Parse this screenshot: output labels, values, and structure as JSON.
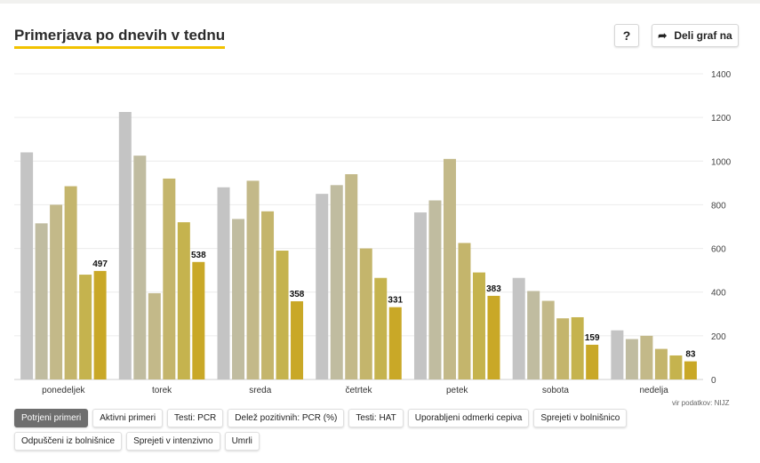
{
  "header": {
    "title": "Primerjava po dnevih v tednu",
    "help_label": "?",
    "share_label": "Deli graf na"
  },
  "source_label": "vir podatkov: NIJZ",
  "tabs": [
    {
      "label": "Potrjeni primeri",
      "active": true
    },
    {
      "label": "Aktivni primeri",
      "active": false
    },
    {
      "label": "Testi: PCR",
      "active": false
    },
    {
      "label": "Delež pozitivnih: PCR (%)",
      "active": false
    },
    {
      "label": "Testi: HAT",
      "active": false
    },
    {
      "label": "Uporabljeni odmerki cepiva",
      "active": false
    },
    {
      "label": "Sprejeti v bolnišnico",
      "active": false
    },
    {
      "label": "Odpuščeni iz bolnišnice",
      "active": false
    },
    {
      "label": "Sprejeti v intenzivno",
      "active": false
    },
    {
      "label": "Umrli",
      "active": false
    }
  ],
  "chart_data": {
    "type": "bar",
    "categories": [
      "ponedeljek",
      "torek",
      "sreda",
      "četrtek",
      "petek",
      "sobota",
      "nedelja"
    ],
    "series": [
      {
        "color": "#c4c4c4",
        "values": [
          1040,
          1225,
          880,
          850,
          765,
          465,
          225
        ]
      },
      {
        "color": "#c0bca0",
        "values": [
          715,
          1025,
          735,
          890,
          820,
          405,
          185
        ]
      },
      {
        "color": "#c3b989",
        "values": [
          800,
          395,
          910,
          940,
          1010,
          360,
          200
        ]
      },
      {
        "color": "#c4b56c",
        "values": [
          885,
          920,
          770,
          600,
          625,
          280,
          140
        ]
      },
      {
        "color": "#c5b34e",
        "values": [
          480,
          720,
          590,
          465,
          490,
          285,
          110
        ]
      },
      {
        "color": "#c9a827",
        "values": [
          497,
          538,
          358,
          331,
          383,
          159,
          83
        ]
      }
    ],
    "data_labels": [
      "497",
      "538",
      "358",
      "331",
      "383",
      "159",
      "83"
    ],
    "yticks": [
      "0",
      "200",
      "400",
      "600",
      "800",
      "1000",
      "1200",
      "1400"
    ],
    "ylim": [
      0,
      1400
    ],
    "grid": true,
    "yaxis_position": "right"
  }
}
